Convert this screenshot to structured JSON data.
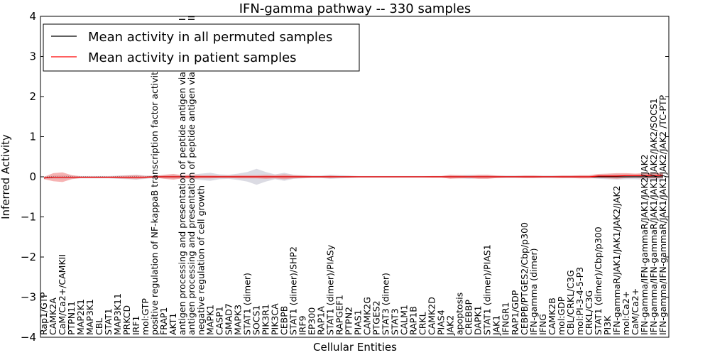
{
  "chart_data": {
    "type": "line",
    "title": "IFN-gamma pathway -- 330 samples",
    "xlabel": "Cellular Entities",
    "ylabel": "Inferred Activity",
    "ylim": [
      -4,
      4
    ],
    "yticks": [
      -4,
      -3,
      -2,
      -1,
      0,
      1,
      2,
      3,
      4
    ],
    "grid": false,
    "legend": {
      "placement": "top-left",
      "entries": [
        {
          "label": "Mean activity in all permuted samples",
          "color": "#000000"
        },
        {
          "label": "Mean activity in patient samples",
          "color": "#ff0000"
        }
      ]
    },
    "categories": [
      "Rap1/GTP",
      "CAMK2A",
      "CaM/Ca2+/CAMKII",
      "PTPN11",
      "MAP2K1",
      "MAP3K1",
      "CBL",
      "STAT1",
      "MAP3K11",
      "PRKCD",
      "IRF1",
      "mol:GTP",
      "positive regulation of NF-kappaB transcription factor activity",
      "FRAP1",
      "AKT1",
      "antigen processing and presentation of peptide antigen via MHC class I",
      "antigen processing and presentation of peptide antigen via MHC class II",
      "negative regulation of cell growth",
      "MAPK1",
      "CASP1",
      "SMAD7",
      "MAPK3",
      "STAT1 (dimer)",
      "SOCS1",
      "PIK3R1",
      "PIK3CA",
      "CEBPB",
      "STAT1 (dimer)/SHP2",
      "IRF9",
      "EP300",
      "RAP1A",
      "STAT1 (dimer)/PIASy",
      "RAPGEF1",
      "PTPN2",
      "PIAS1",
      "CAMK2G",
      "PTGES2",
      "STAT3 (dimer)",
      "STAT3",
      "CALM1",
      "RAP1B",
      "CRKL",
      "CAMK2D",
      "PIAS4",
      "JAK2",
      "apoptosis",
      "CREBBP",
      "DAPK1",
      "STAT1 (dimer)/PIAS1",
      "JAK1",
      "IFNGR1",
      "RAP1/GDP",
      "CEBPB/PTGES2/Cbp/p300",
      "IFN-gamma (dimer)",
      "IFNG",
      "CAMK2B",
      "mol:GDP",
      "CBL/CRKL/C3G",
      "mol:PI-3-4-5-P3",
      "CRKL/C3G",
      "STAT1 (dimer)/Cbp/p300",
      "PI3K",
      "IFN-gammaR/JAK1/JAK1/JAK2/JAK2",
      "mol:Ca2+",
      "CaM/Ca2+",
      "IFN-gamma/IFN-gammaR/JAK1/JAK2/JAK2",
      "IFN-gamma/IFN-gammaR/JAK1/JAK1/JAK2/JAK2/SOCS1",
      "IFN-gamma/IFN-gammaR/JAK1/JAK1/JAK2/JAK2 /TC-PTP"
    ],
    "series": [
      {
        "name": "Mean activity in all permuted samples",
        "color": "#000000",
        "band_color": "#b0b0c0",
        "values": [
          -0.03,
          -0.01,
          -0.01,
          -0.01,
          -0.01,
          -0.01,
          -0.01,
          -0.01,
          -0.01,
          -0.01,
          -0.01,
          -0.01,
          0.0,
          0.0,
          0.0,
          0.0,
          0.0,
          0.0,
          0.0,
          0.0,
          0.0,
          0.0,
          0.0,
          0.0,
          0.0,
          0.0,
          0.0,
          0.0,
          0.0,
          0.0,
          0.0,
          0.0,
          0.0,
          0.0,
          0.0,
          0.0,
          0.0,
          0.0,
          0.0,
          0.0,
          0.0,
          0.0,
          0.0,
          0.0,
          0.0,
          0.0,
          0.0,
          0.0,
          0.0,
          0.0,
          0.0,
          0.0,
          0.0,
          0.0,
          0.0,
          0.0,
          0.0,
          0.0,
          0.0,
          0.0,
          0.0,
          0.0,
          0.0,
          0.0,
          0.0,
          0.0,
          0.0,
          0.0
        ],
        "band": [
          0.02,
          0.04,
          0.05,
          0.04,
          0.03,
          0.03,
          0.03,
          0.03,
          0.04,
          0.05,
          0.06,
          0.04,
          0.03,
          0.04,
          0.05,
          0.04,
          0.05,
          0.08,
          0.1,
          0.06,
          0.05,
          0.08,
          0.12,
          0.2,
          0.12,
          0.06,
          0.1,
          0.05,
          0.04,
          0.03,
          0.03,
          0.05,
          0.04,
          0.03,
          0.02,
          0.02,
          0.02,
          0.02,
          0.02,
          0.02,
          0.02,
          0.02,
          0.02,
          0.02,
          0.03,
          0.04,
          0.05,
          0.04,
          0.04,
          0.03,
          0.03,
          0.03,
          0.03,
          0.03,
          0.03,
          0.03,
          0.03,
          0.03,
          0.03,
          0.03,
          0.05,
          0.06,
          0.07,
          0.06,
          0.06,
          0.07,
          0.08,
          0.07
        ]
      },
      {
        "name": "Mean activity in patient samples",
        "color": "#ff0000",
        "band_color": "#f08080",
        "values": [
          -0.03,
          -0.01,
          -0.01,
          -0.01,
          -0.01,
          -0.01,
          -0.01,
          -0.01,
          -0.01,
          -0.01,
          -0.01,
          -0.01,
          0.0,
          0.0,
          0.0,
          0.0,
          0.0,
          0.0,
          0.0,
          0.0,
          0.0,
          0.0,
          0.0,
          0.0,
          0.0,
          0.0,
          0.0,
          0.0,
          0.0,
          0.0,
          0.0,
          0.0,
          0.0,
          0.0,
          0.0,
          0.0,
          0.0,
          0.0,
          0.0,
          0.0,
          0.0,
          0.0,
          0.0,
          0.0,
          0.0,
          0.0,
          0.0,
          0.0,
          0.0,
          0.0,
          0.0,
          0.0,
          0.0,
          0.0,
          0.0,
          0.0,
          0.0,
          0.0,
          0.0,
          0.0,
          0.02,
          0.02,
          0.02,
          0.03,
          0.03,
          0.03,
          0.03,
          0.03
        ],
        "band": [
          0.03,
          0.1,
          0.12,
          0.05,
          0.02,
          0.02,
          0.02,
          0.02,
          0.03,
          0.04,
          0.05,
          0.03,
          0.02,
          0.05,
          0.07,
          0.04,
          0.05,
          0.04,
          0.04,
          0.03,
          0.03,
          0.04,
          0.04,
          0.04,
          0.05,
          0.04,
          0.06,
          0.04,
          0.03,
          0.02,
          0.02,
          0.03,
          0.02,
          0.02,
          0.01,
          0.01,
          0.01,
          0.01,
          0.01,
          0.01,
          0.01,
          0.01,
          0.02,
          0.02,
          0.05,
          0.04,
          0.03,
          0.05,
          0.05,
          0.03,
          0.02,
          0.02,
          0.03,
          0.03,
          0.02,
          0.02,
          0.03,
          0.03,
          0.04,
          0.04,
          0.05,
          0.06,
          0.07,
          0.06,
          0.05,
          0.06,
          0.07,
          0.06
        ]
      }
    ]
  }
}
